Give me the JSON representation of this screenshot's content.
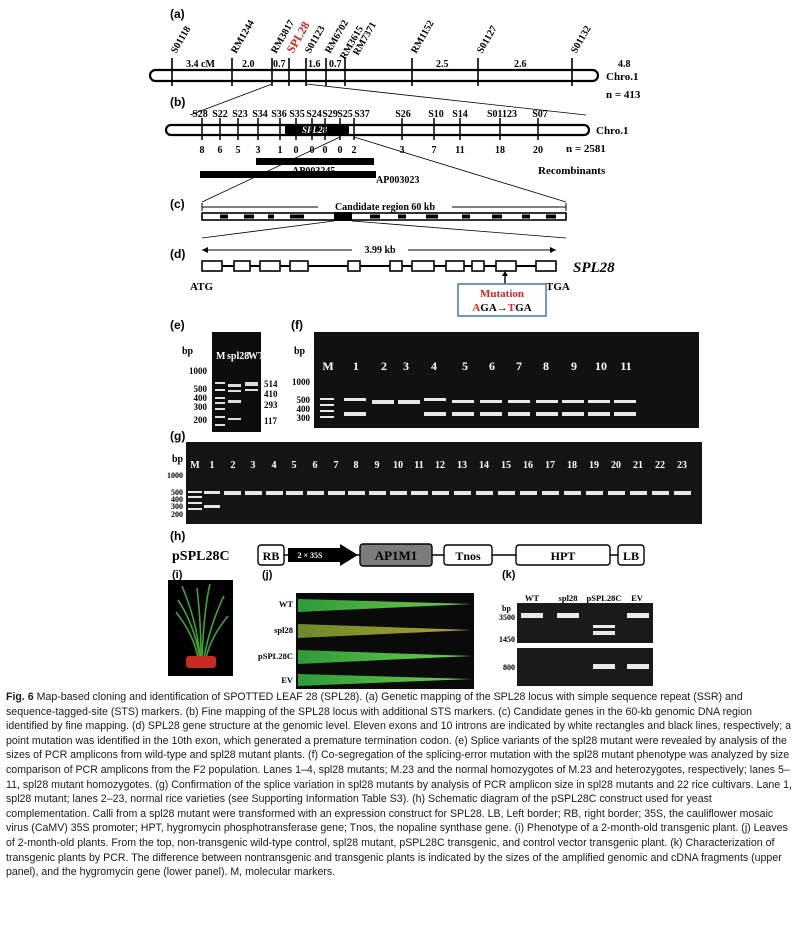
{
  "panels": {
    "a": {
      "label": "(a)",
      "markers": [
        "S01118",
        "RM1244",
        "RM3817",
        "SPL28",
        "S01123",
        "RM6702",
        "RM3615",
        "RM7371",
        "RM1152",
        "S01127",
        "S01132"
      ],
      "distances": [
        "3.4 cM",
        "2.0",
        "0.7",
        "1.6",
        "0.7",
        "2.5",
        "2.6",
        "4.8"
      ],
      "chromosome": "Chro.1",
      "n": "n = 413",
      "highlight_color": "#e0201b"
    },
    "b": {
      "label": "(b)",
      "markers": [
        "S28",
        "S22",
        "S23",
        "S34",
        "S36",
        "S35",
        "S24",
        "S29",
        "S25",
        "S37",
        "S26",
        "S10",
        "S14",
        "S01123",
        "S07"
      ],
      "gene": "SPL28",
      "recombinants": [
        "8",
        "6",
        "5",
        "3",
        "1",
        "0",
        "0",
        "0",
        "0",
        "2",
        "3",
        "7",
        "11",
        "18",
        "20"
      ],
      "bacs": [
        "AP003245",
        "AP003023"
      ],
      "chromosome": "Chro.1",
      "n": "n = 2581",
      "recombinants_label": "Recombinants"
    },
    "c": {
      "label": "(c)",
      "title": "Candidate region 60 kb"
    },
    "d": {
      "label": "(d)",
      "size": "3.99 kb",
      "gene": "SPL28",
      "start": "ATG",
      "end": "TGA",
      "mutation_title": "Mutation",
      "mut_a": "A",
      "mut_ga": "GA",
      "mut_arrow": "→",
      "mut_t": "T",
      "mut_ga2": "GA"
    },
    "e": {
      "label": "(e)",
      "bp": "bp",
      "lanes": [
        "M",
        "spl28",
        "WT"
      ],
      "ladder": [
        "1000",
        "500",
        "400",
        "300",
        "200"
      ],
      "sizes": [
        "514",
        "410",
        "293",
        "117"
      ]
    },
    "f": {
      "label": "(f)",
      "bp": "bp",
      "lanes": [
        "M",
        "1",
        "2",
        "3",
        "4",
        "5",
        "6",
        "7",
        "8",
        "9",
        "10",
        "11"
      ],
      "ladder": [
        "1000",
        "500",
        "400",
        "300"
      ]
    },
    "g": {
      "label": "(g)",
      "bp": "bp",
      "lanes": [
        "M",
        "1",
        "2",
        "3",
        "4",
        "5",
        "6",
        "7",
        "8",
        "9",
        "10",
        "11",
        "12",
        "13",
        "14",
        "15",
        "16",
        "17",
        "18",
        "19",
        "20",
        "21",
        "22",
        "23"
      ],
      "ladder": [
        "1000",
        "500",
        "400",
        "300",
        "200"
      ]
    },
    "h": {
      "label": "(h)",
      "construct": "pSPL28C",
      "parts": [
        "RB",
        "2 × 35S",
        "AP1M1",
        "Tnos",
        "HPT",
        "LB"
      ]
    },
    "i": {
      "label": "(i)"
    },
    "j": {
      "label": "(j)",
      "rows": [
        "WT",
        "spl28",
        "pSPL28C",
        "EV"
      ]
    },
    "k": {
      "label": "(k)",
      "bp": "bp",
      "lanes": [
        "WT",
        "spl28",
        "pSPL28C",
        "EV"
      ],
      "ladder": [
        "3500",
        "1450",
        "800"
      ]
    }
  },
  "caption": {
    "fig": "Fig. 6",
    "text": " Map-based cloning and identification of SPOTTED LEAF 28 (SPL28). (a) Genetic mapping of the SPL28 locus with simple sequence repeat (SSR) and sequence-tagged-site (STS) markers. (b) Fine mapping of the SPL28 locus with additional STS markers. (c) Candidate genes in the 60-kb genomic DNA region identified by fine mapping. (d) SPL28 gene structure at the genomic level. Eleven exons and 10 introns are indicated by white rectangles and black lines, respectively; a point mutation was identified in the 10th exon, which generated a premature termination codon. (e) Splice variants of the spl28 mutant were revealed by analysis of the sizes of PCR amplicons from wild-type and spl28 mutant plants. (f) Co-segregation of the splicing-error mutation with the spl28 mutant phenotype was analyzed by size comparison of PCR amplicons from the F2 population. Lanes 1–4, spl28 mutants; M.23 and the normal homozygotes of M.23 and heterozygotes, respectively; lanes 5–11, spl28 mutant homozygotes. (g) Confirmation of the splice variation in spl28 mutants by analysis of PCR amplicon size in spl28 mutants and 22 rice cultivars. Lane 1, spl28 mutant; lanes 2–23, normal rice varieties (see Supporting Information Table S3). (h) Schematic diagram of the pSPL28C construct used for yeast complementation. Calli from a spl28 mutant were transformed with an expression construct for SPL28. LB, Left border; RB, right border; 35S, the cauliflower mosaic virus (CaMV) 35S promoter; HPT, hygromycin phosphotransferase gene; Tnos, the nopaline synthase gene. (i) Phenotype of a 2-month-old transgenic plant. (j) Leaves of 2-month-old plants. From the top, non-transgenic wild-type control, spl28 mutant, pSPL28C transgenic, and control vector transgenic plant. (k) Characterization of transgenic plants by PCR. The difference between nontransgenic and transgenic plants is indicated by the sizes of the amplified genomic and cDNA fragments (upper panel), and the hygromycin gene (lower panel). M, molecular markers."
  }
}
